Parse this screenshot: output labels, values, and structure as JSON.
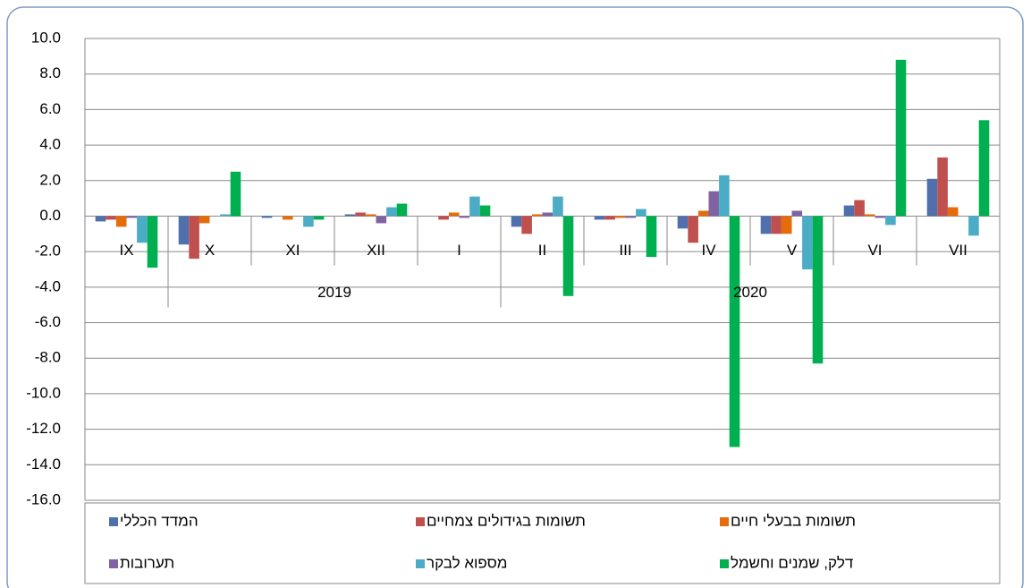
{
  "chart_data": {
    "type": "bar",
    "categories": [
      "IX",
      "X",
      "XI",
      "XII",
      "I",
      "II",
      "III",
      "IV",
      "V",
      "VI",
      "VII"
    ],
    "year_labels": [
      "2019",
      "2020"
    ],
    "series": [
      {
        "name": "המדד הכללי",
        "color": "#4f6fad",
        "values": [
          -0.3,
          -1.6,
          -0.1,
          0.1,
          0.0,
          -0.6,
          -0.2,
          -0.7,
          -1.0,
          0.6,
          2.1
        ]
      },
      {
        "name": "תשומות בגידולים צמחיים",
        "color": "#c0504d",
        "values": [
          -0.2,
          -2.4,
          0.0,
          0.2,
          -0.2,
          -1.0,
          -0.2,
          -1.5,
          -1.0,
          0.9,
          3.3
        ]
      },
      {
        "name": "תשומות בבעלי חיים",
        "color": "#e46c0a",
        "values": [
          -0.6,
          -0.4,
          -0.2,
          0.1,
          0.2,
          0.1,
          -0.1,
          0.3,
          -1.0,
          0.1,
          0.5
        ]
      },
      {
        "name": "תערובות",
        "color": "#8064a2",
        "values": [
          -0.1,
          0.0,
          0.0,
          -0.4,
          -0.1,
          0.2,
          -0.1,
          1.4,
          0.3,
          -0.1,
          0.0
        ]
      },
      {
        "name": "מספוא לבקר",
        "color": "#4bacc6",
        "values": [
          -1.5,
          0.1,
          -0.6,
          0.5,
          1.1,
          1.1,
          0.4,
          2.3,
          -3.0,
          -0.5,
          -1.1
        ]
      },
      {
        "name": "דלק, שמנים וחשמל",
        "color": "#00b050",
        "values": [
          -2.9,
          2.5,
          -0.2,
          0.7,
          0.6,
          -4.5,
          -2.3,
          -13.0,
          -8.3,
          8.8,
          5.4
        ]
      }
    ],
    "ylim": [
      -16,
      10
    ],
    "yticks": [
      {
        "value": 10,
        "label": "10.0"
      },
      {
        "value": 8,
        "label": "8.0"
      },
      {
        "value": 6,
        "label": "6.0"
      },
      {
        "value": 4,
        "label": "4.0"
      },
      {
        "value": 2,
        "label": "2.0"
      },
      {
        "value": 0,
        "label": "0.0"
      },
      {
        "value": -2,
        "label": "-2.0"
      },
      {
        "value": -4,
        "label": "-4.0"
      },
      {
        "value": -6,
        "label": "-6.0"
      },
      {
        "value": -8,
        "label": "-8.0"
      },
      {
        "value": -10,
        "label": "-10.0"
      },
      {
        "value": -12,
        "label": "-12.0"
      },
      {
        "value": -14,
        "label": "-14.0"
      },
      {
        "value": -16,
        "label": "-16.0"
      }
    ],
    "grid": true
  }
}
